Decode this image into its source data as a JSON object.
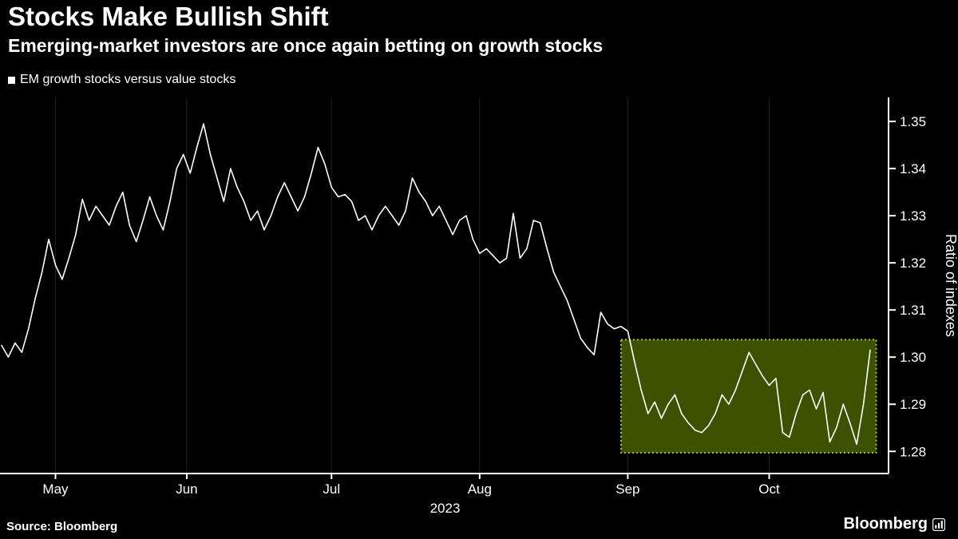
{
  "footer": {
    "source": "Source: Bloomberg",
    "brand": "Bloomberg"
  },
  "chart_data": {
    "type": "line",
    "title": "Stocks Make Bullish Shift",
    "subtitle": "Emerging-market investors are once again betting on growth stocks",
    "legend": {
      "label": "EM growth stocks versus value stocks",
      "swatch_color": "#ffffff"
    },
    "ylabel": "Ratio of indexes",
    "x_year": "2023",
    "ylim": [
      1.2753,
      1.3551
    ],
    "yticks": [
      1.28,
      1.29,
      1.3,
      1.31,
      1.32,
      1.33,
      1.34,
      1.35
    ],
    "x_ticks": [
      {
        "label": "May",
        "index": 8
      },
      {
        "label": "Jun",
        "index": 27.5
      },
      {
        "label": "Jul",
        "index": 49
      },
      {
        "label": "Aug",
        "index": 71
      },
      {
        "label": "Sep",
        "index": 93
      },
      {
        "label": "Oct",
        "index": 114
      }
    ],
    "series": [
      {
        "name": "EM growth stocks versus value stocks",
        "values": [
          1.3025,
          1.3,
          1.303,
          1.301,
          1.306,
          1.3125,
          1.318,
          1.325,
          1.3195,
          1.3165,
          1.321,
          1.326,
          1.3335,
          1.329,
          1.332,
          1.33,
          1.328,
          1.332,
          1.335,
          1.328,
          1.3245,
          1.329,
          1.334,
          1.33,
          1.327,
          1.333,
          1.34,
          1.343,
          1.339,
          1.3445,
          1.3495,
          1.343,
          1.338,
          1.333,
          1.34,
          1.336,
          1.333,
          1.329,
          1.331,
          1.327,
          1.33,
          1.334,
          1.337,
          1.334,
          1.331,
          1.334,
          1.339,
          1.3445,
          1.341,
          1.336,
          1.334,
          1.3345,
          1.333,
          1.329,
          1.33,
          1.327,
          1.33,
          1.332,
          1.33,
          1.328,
          1.331,
          1.338,
          1.335,
          1.333,
          1.33,
          1.332,
          1.329,
          1.326,
          1.329,
          1.33,
          1.325,
          1.322,
          1.323,
          1.3215,
          1.32,
          1.321,
          1.3305,
          1.321,
          1.323,
          1.329,
          1.3285,
          1.323,
          1.318,
          1.315,
          1.312,
          1.308,
          1.304,
          1.302,
          1.3005,
          1.3095,
          1.307,
          1.306,
          1.3065,
          1.3055,
          1.299,
          1.293,
          1.288,
          1.2905,
          1.287,
          1.29,
          1.292,
          1.288,
          1.286,
          1.2845,
          1.284,
          1.2855,
          1.288,
          1.292,
          1.29,
          1.293,
          1.297,
          1.301,
          1.2985,
          1.296,
          1.294,
          1.2955,
          1.284,
          1.283,
          1.288,
          1.292,
          1.293,
          1.289,
          1.2925,
          1.282,
          1.285,
          1.29,
          1.286,
          1.2815,
          1.29,
          1.3015
        ]
      }
    ],
    "highlight": {
      "start_index": 92,
      "end_index": 129.9,
      "y_min": 1.2797,
      "y_max": 1.3037,
      "fill": "#3d5200",
      "border": "#a6c414"
    },
    "colors": {
      "line": "#ffffff",
      "grid": "#202020",
      "axis": "#ffffff",
      "background": "#000000"
    }
  }
}
